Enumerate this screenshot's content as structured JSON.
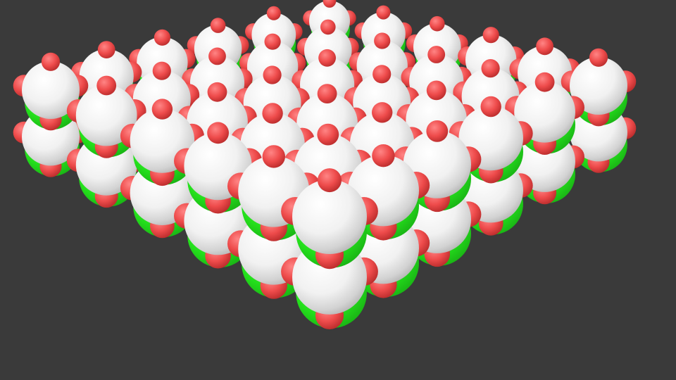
{
  "scene": {
    "subject": "crystal-lattice-render",
    "background_color": "#3a3a3a",
    "atom_colors": {
      "large_atom": "#f2f2f2",
      "small_atom": "#ef4f4f",
      "cation": "#22e01c"
    },
    "lattice": {
      "rows": 6,
      "columns": 6,
      "layers": 2
    }
  }
}
